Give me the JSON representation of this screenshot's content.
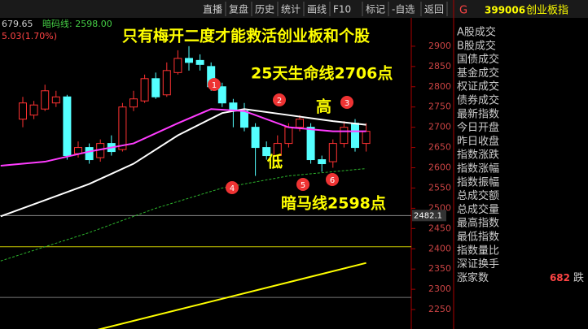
{
  "toolbar": [
    "直播",
    "复盘",
    "历史",
    "统计",
    "画线",
    "F10",
    "标记",
    "-自选",
    "返回"
  ],
  "header": {
    "price": "679.65",
    "line_label": "暗码线: 2598.00",
    "change": "5.03(1.70%)"
  },
  "panel": {
    "flag": "G",
    "code": "399006",
    "name": "创业板指",
    "rows": [
      "A股成交",
      "B股成交",
      "国债成交",
      "基金成交",
      "权证成交",
      "债券成交",
      "最新指数",
      "今日开盘",
      "昨日收盘",
      "指数涨跌",
      "指数涨幅",
      "指数振幅",
      "总成交额",
      "总成交量",
      "最高指数",
      "最低指数",
      "指数量比",
      "深证换手",
      "涨家数"
    ],
    "rise_count": "682",
    "fall_label": "跌"
  },
  "annotations": {
    "title": "只有梅开二度才能救活创业板和个股",
    "ma25": "25天生命线2706点",
    "high": "高",
    "low": "低",
    "dark_line": "暗马线2598点",
    "markers": [
      "1",
      "2",
      "3",
      "4",
      "5",
      "6"
    ]
  },
  "chart_data": {
    "type": "candlestick",
    "ylim": [
      2202,
      2970
    ],
    "yticks": [
      2900,
      2850,
      2800,
      2750,
      2700,
      2650,
      2600,
      2550,
      2500,
      2450,
      2400,
      2350,
      2300,
      2250
    ],
    "levels": [
      {
        "value": 2482.1,
        "label": "2482.1",
        "color": "#888"
      },
      {
        "value": 2405,
        "color": "#cc0"
      },
      {
        "value": 2280,
        "color": "#777"
      }
    ],
    "up_color": "#ff3232",
    "down_color": "#54ffff",
    "open": [
      2720,
      2730,
      2745,
      2760,
      2775,
      2635,
      2650,
      2625,
      2660,
      2645,
      2750,
      2765,
      2820,
      2780,
      2835,
      2870,
      2865,
      2850,
      2800,
      2760,
      2740,
      2700,
      2650,
      2630,
      2660,
      2700,
      2700,
      2620,
      2615,
      2660,
      2710,
      2660
    ],
    "close": [
      2760,
      2755,
      2790,
      2775,
      2630,
      2650,
      2620,
      2660,
      2640,
      2750,
      2770,
      2820,
      2775,
      2840,
      2870,
      2860,
      2855,
      2800,
      2760,
      2740,
      2700,
      2650,
      2630,
      2660,
      2700,
      2720,
      2620,
      2610,
      2660,
      2700,
      2650,
      2690
    ],
    "high": [
      2775,
      2765,
      2805,
      2790,
      2780,
      2665,
      2660,
      2670,
      2680,
      2760,
      2790,
      2830,
      2835,
      2860,
      2890,
      2900,
      2880,
      2860,
      2810,
      2770,
      2760,
      2710,
      2665,
      2680,
      2710,
      2730,
      2710,
      2630,
      2670,
      2715,
      2720,
      2710
    ],
    "low": [
      2700,
      2720,
      2740,
      2750,
      2620,
      2625,
      2610,
      2615,
      2630,
      2640,
      2740,
      2760,
      2770,
      2775,
      2830,
      2840,
      2840,
      2790,
      2750,
      2700,
      2690,
      2580,
      2620,
      2610,
      2650,
      2690,
      2610,
      2590,
      2600,
      2650,
      2640,
      2640
    ],
    "lines": [
      {
        "color": "#ffffff",
        "dash": false,
        "x": [
          -2,
          2,
          6,
          10,
          14,
          18,
          20,
          24,
          28,
          31
        ],
        "values": [
          2480,
          2520,
          2560,
          2610,
          2680,
          2735,
          2745,
          2730,
          2715,
          2706
        ]
      },
      {
        "color": "#ff3cff",
        "dash": false,
        "x": [
          -2,
          2,
          6,
          10,
          14,
          17,
          20,
          24,
          28,
          31
        ],
        "values": [
          2605,
          2615,
          2640,
          2660,
          2710,
          2745,
          2740,
          2700,
          2690,
          2690
        ]
      },
      {
        "color": "#2db52d",
        "dash": true,
        "x": [
          -2,
          6,
          12,
          18,
          24,
          31
        ],
        "values": [
          2370,
          2440,
          2500,
          2550,
          2580,
          2598
        ]
      },
      {
        "color": "#ffff00",
        "dash": false,
        "x": [
          6,
          31
        ],
        "values": [
          2195,
          2365
        ]
      }
    ]
  }
}
